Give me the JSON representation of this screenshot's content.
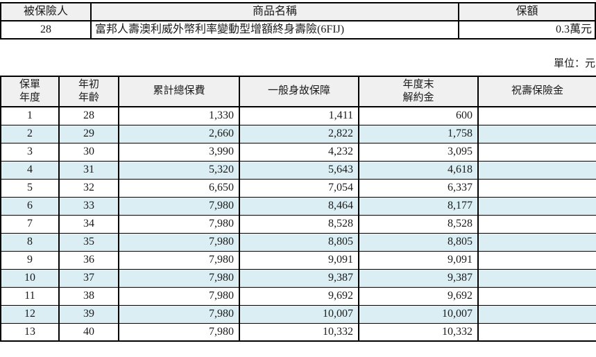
{
  "page": {
    "unit_label": "單位：元"
  },
  "policy_info": {
    "headers": {
      "insured": "被保險人",
      "product_name": "商品名稱",
      "coverage": "保額"
    },
    "values": {
      "insured_age": "28",
      "product_name": "富邦人壽澳利威外幣利率變動型增額終身壽險(6FIJ)",
      "coverage": "0.3萬元"
    }
  },
  "benefit_table": {
    "columns": [
      {
        "id": "policy_year",
        "label": "保單\n年度",
        "align": "center"
      },
      {
        "id": "age_start",
        "label": "年初\n年齡",
        "align": "center"
      },
      {
        "id": "total_premium",
        "label": "累計總保費",
        "align": "right"
      },
      {
        "id": "death_benefit",
        "label": "一般身故保障",
        "align": "right"
      },
      {
        "id": "surrender_value",
        "label": "年度末\n解約金",
        "align": "right"
      },
      {
        "id": "longevity_benefit",
        "label": "祝壽保險金",
        "align": "right"
      }
    ],
    "rows": [
      [
        "1",
        "28",
        "1,330",
        "1,411",
        "600",
        ""
      ],
      [
        "2",
        "29",
        "2,660",
        "2,822",
        "1,758",
        ""
      ],
      [
        "3",
        "30",
        "3,990",
        "4,232",
        "3,095",
        ""
      ],
      [
        "4",
        "31",
        "5,320",
        "5,643",
        "4,618",
        ""
      ],
      [
        "5",
        "32",
        "6,650",
        "7,054",
        "6,337",
        ""
      ],
      [
        "6",
        "33",
        "7,980",
        "8,464",
        "8,177",
        ""
      ],
      [
        "7",
        "34",
        "7,980",
        "8,528",
        "8,528",
        ""
      ],
      [
        "8",
        "35",
        "7,980",
        "8,805",
        "8,805",
        ""
      ],
      [
        "9",
        "36",
        "7,980",
        "9,091",
        "9,091",
        ""
      ],
      [
        "10",
        "37",
        "7,980",
        "9,387",
        "9,387",
        ""
      ],
      [
        "11",
        "38",
        "7,980",
        "9,692",
        "9,692",
        ""
      ],
      [
        "12",
        "39",
        "7,980",
        "10,007",
        "10,007",
        ""
      ],
      [
        "13",
        "40",
        "7,980",
        "10,332",
        "10,332",
        ""
      ]
    ]
  },
  "colors": {
    "banded_row": "#daeef3",
    "header_bg": "#f0f0f0",
    "border": "#000000",
    "text": "#1a1a1a"
  }
}
